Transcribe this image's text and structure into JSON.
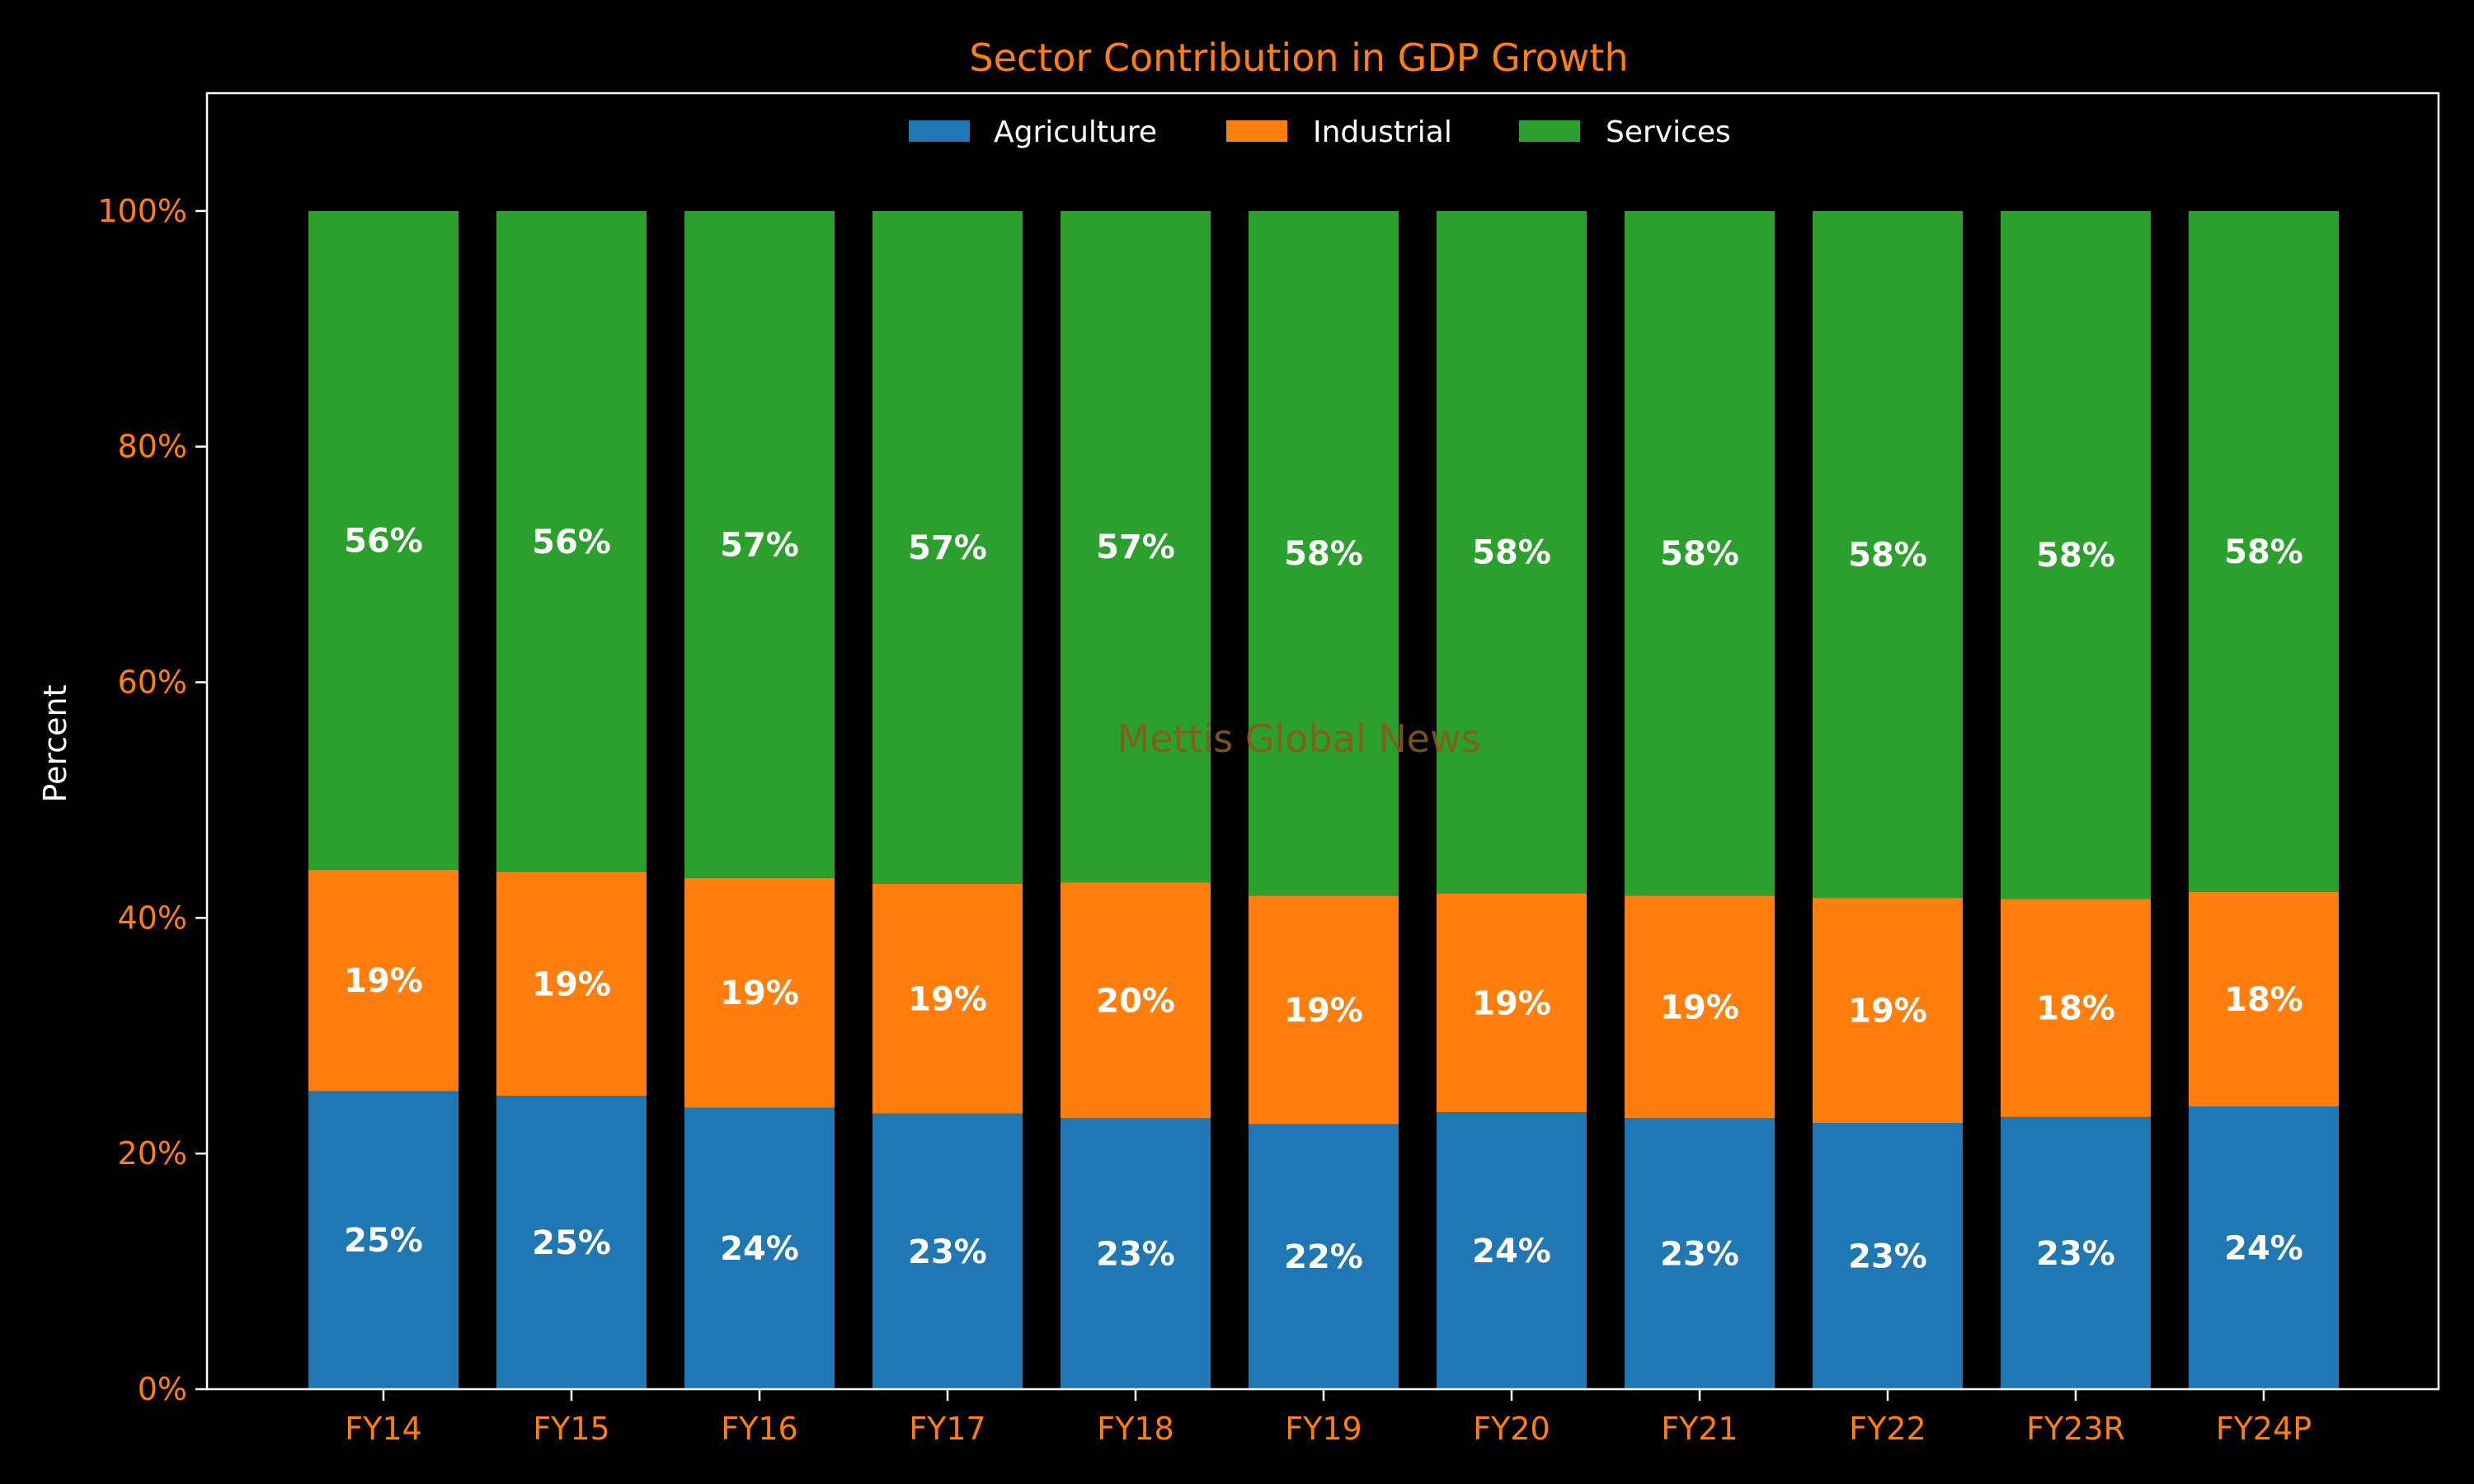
{
  "chart_data": {
    "type": "bar",
    "stacked": true,
    "title": "Sector Contribution in GDP Growth",
    "ylabel": "Percent",
    "xlabel": "",
    "ylim": [
      0,
      110
    ],
    "yticks": [
      {
        "value": 0,
        "label": "0%"
      },
      {
        "value": 20,
        "label": "20%"
      },
      {
        "value": 40,
        "label": "40%"
      },
      {
        "value": 60,
        "label": "60%"
      },
      {
        "value": 80,
        "label": "80%"
      },
      {
        "value": 100,
        "label": "100%"
      }
    ],
    "categories": [
      "FY14",
      "FY15",
      "FY16",
      "FY17",
      "FY18",
      "FY19",
      "FY20",
      "FY21",
      "FY22",
      "FY23R",
      "FY24P"
    ],
    "series": [
      {
        "name": "Agriculture",
        "color": "#1f77b4",
        "values": [
          25.3,
          24.9,
          23.9,
          23.4,
          23.0,
          22.5,
          23.5,
          23.0,
          22.6,
          23.1,
          24.0
        ],
        "labels": [
          "25%",
          "25%",
          "24%",
          "23%",
          "23%",
          "22%",
          "24%",
          "23%",
          "23%",
          "23%",
          "24%"
        ]
      },
      {
        "name": "Industrial",
        "color": "#ff7f0e",
        "values": [
          18.8,
          19.0,
          19.5,
          19.5,
          20.0,
          19.4,
          18.6,
          18.9,
          19.1,
          18.5,
          18.2
        ],
        "labels": [
          "19%",
          "19%",
          "19%",
          "19%",
          "20%",
          "19%",
          "19%",
          "19%",
          "19%",
          "18%",
          "18%"
        ]
      },
      {
        "name": "Services",
        "color": "#2ca02c",
        "values": [
          55.9,
          56.1,
          56.6,
          57.1,
          57.0,
          58.1,
          57.9,
          58.1,
          58.3,
          58.4,
          57.8
        ],
        "labels": [
          "56%",
          "56%",
          "57%",
          "57%",
          "57%",
          "58%",
          "58%",
          "58%",
          "58%",
          "58%",
          "58%"
        ]
      }
    ],
    "legend": {
      "placement": "top-center"
    },
    "grid": false,
    "watermark": "Mettis Global News",
    "colors": {
      "background": "#000000",
      "axes": "#ffffff",
      "tick_labels": "#ff7f0e",
      "title": "#ff7f0e",
      "data_labels": "#ffffff"
    }
  }
}
